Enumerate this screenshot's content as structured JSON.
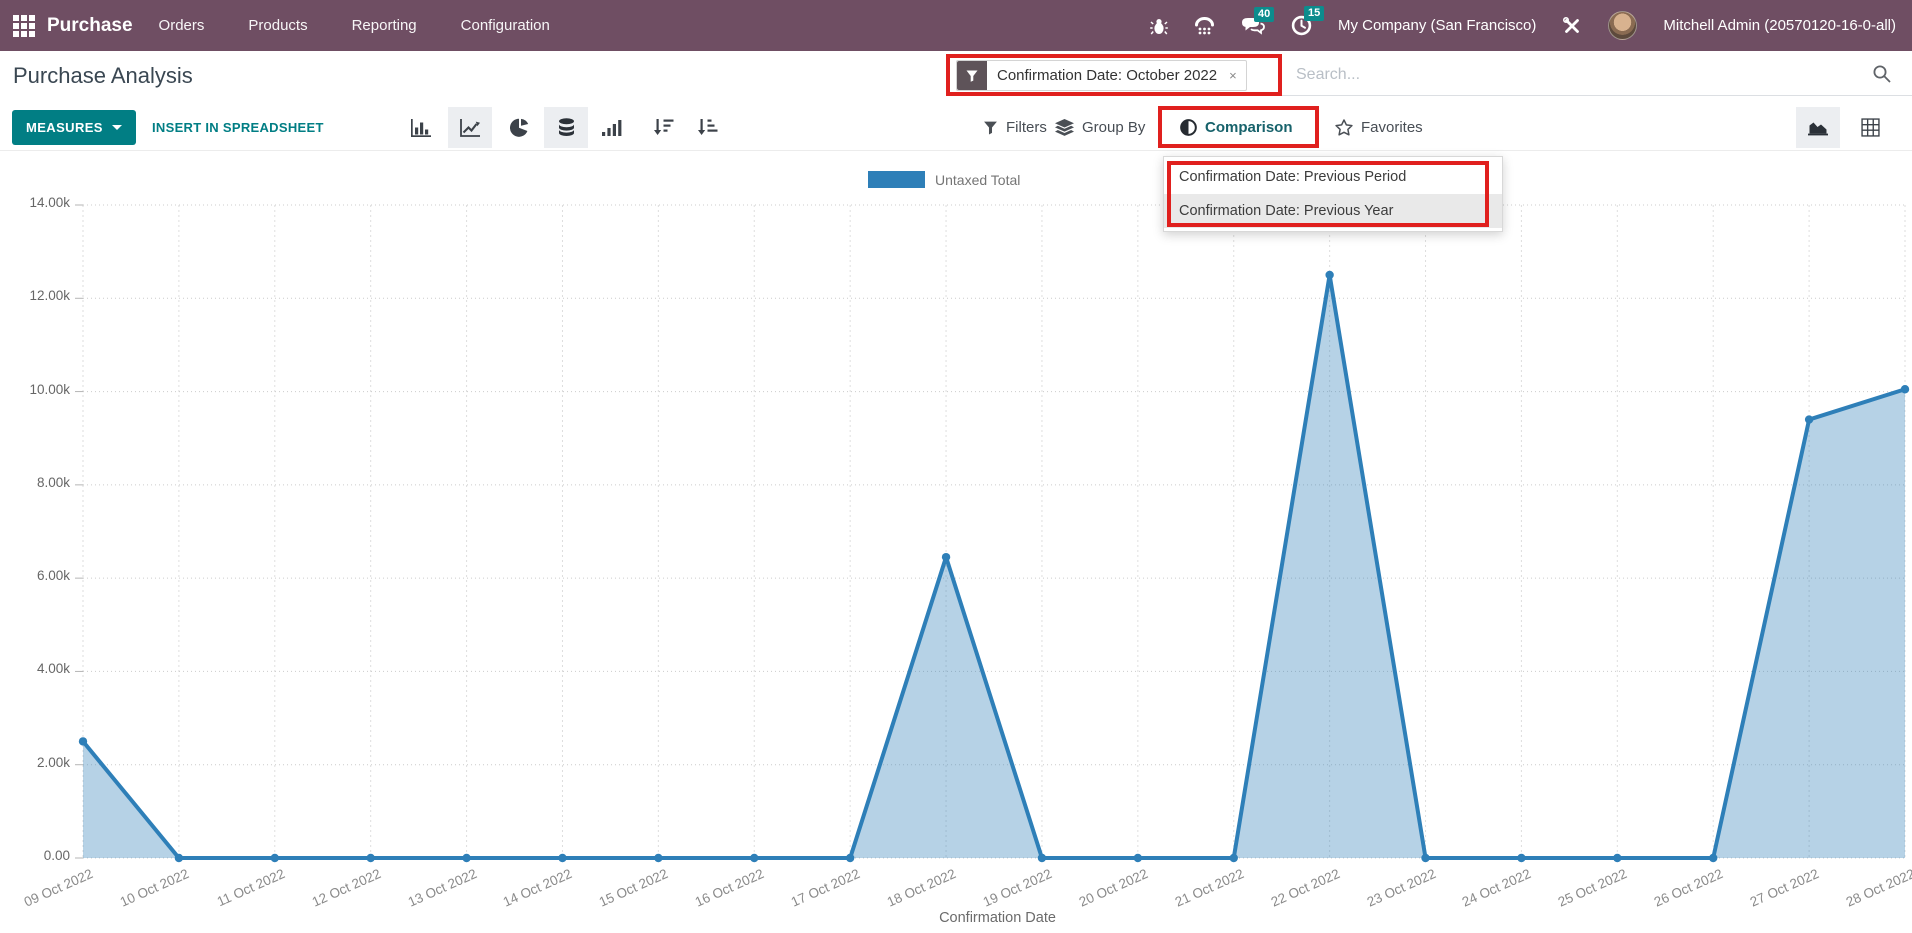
{
  "topbar": {
    "app_name": "Purchase",
    "menus": [
      "Orders",
      "Products",
      "Reporting",
      "Configuration"
    ],
    "systray": {
      "message_badge": "40",
      "activity_badge": "15",
      "company": "My Company (San Francisco)",
      "user": "Mitchell Admin (20570120-16-0-all)"
    }
  },
  "page": {
    "title": "Purchase Analysis"
  },
  "toolbar": {
    "measures_label": "MEASURES",
    "insert_label": "INSERT IN SPREADSHEET"
  },
  "search": {
    "facet_label": "Confirmation Date: October 2022",
    "facet_remove": "×",
    "placeholder": "Search..."
  },
  "filters_bar": {
    "filters": "Filters",
    "group_by": "Group By",
    "comparison": "Comparison",
    "favorites": "Favorites"
  },
  "comparison_menu": {
    "items": [
      "Confirmation Date: Previous Period",
      "Confirmation Date: Previous Year"
    ]
  },
  "chart_data": {
    "type": "area",
    "title": "Purchase Analysis — Untaxed Total by Confirmation Date",
    "legend": [
      "Untaxed Total"
    ],
    "xlabel": "Confirmation Date",
    "ylabel": "",
    "categories": [
      "09 Oct 2022",
      "10 Oct 2022",
      "11 Oct 2022",
      "12 Oct 2022",
      "13 Oct 2022",
      "14 Oct 2022",
      "15 Oct 2022",
      "16 Oct 2022",
      "17 Oct 2022",
      "18 Oct 2022",
      "19 Oct 2022",
      "20 Oct 2022",
      "21 Oct 2022",
      "22 Oct 2022",
      "23 Oct 2022",
      "24 Oct 2022",
      "25 Oct 2022",
      "26 Oct 2022",
      "27 Oct 2022",
      "28 Oct 2022"
    ],
    "values": [
      2500,
      0,
      0,
      0,
      0,
      0,
      0,
      0,
      0,
      6450,
      0,
      0,
      0,
      12500,
      0,
      0,
      0,
      0,
      9400,
      10050
    ],
    "ylim": [
      0,
      14000
    ],
    "ytick_step": 2000,
    "ytick_labels": [
      "0.00",
      "2.00k",
      "4.00k",
      "6.00k",
      "8.00k",
      "10.00k",
      "12.00k",
      "14.00k"
    ],
    "grid": true,
    "legend_position": "top",
    "series_color": "#2e7fb8",
    "fill_color": "rgba(46,127,184,0.35)"
  },
  "colors": {
    "topbar_purple": "#6f4e63",
    "accent_teal": "#017e84",
    "badge_teal": "#0c8c8d",
    "annotation_red": "#e0201e",
    "series_blue": "#2e7fb8"
  }
}
